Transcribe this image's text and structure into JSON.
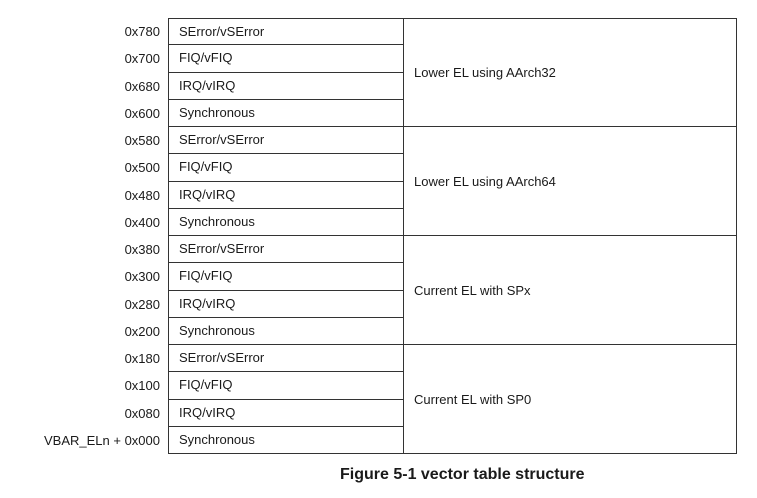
{
  "figure": {
    "caption": "Figure 5-1 vector table structure"
  },
  "groups": [
    {
      "name": "Lower EL using AArch32",
      "entries": [
        {
          "offset": "0x780",
          "vector": "SError/vSError"
        },
        {
          "offset": "0x700",
          "vector": "FIQ/vFIQ"
        },
        {
          "offset": "0x680",
          "vector": "IRQ/vIRQ"
        },
        {
          "offset": "0x600",
          "vector": "Synchronous"
        }
      ]
    },
    {
      "name": "Lower EL using AArch64",
      "entries": [
        {
          "offset": "0x580",
          "vector": "SError/vSError"
        },
        {
          "offset": "0x500",
          "vector": "FIQ/vFIQ"
        },
        {
          "offset": "0x480",
          "vector": "IRQ/vIRQ"
        },
        {
          "offset": "0x400",
          "vector": "Synchronous"
        }
      ]
    },
    {
      "name": "Current EL with SPx",
      "entries": [
        {
          "offset": "0x380",
          "vector": "SError/vSError"
        },
        {
          "offset": "0x300",
          "vector": "FIQ/vFIQ"
        },
        {
          "offset": "0x280",
          "vector": "IRQ/vIRQ"
        },
        {
          "offset": "0x200",
          "vector": "Synchronous"
        }
      ]
    },
    {
      "name": "Current EL with SP0",
      "entries": [
        {
          "offset": "0x180",
          "vector": "SError/vSError"
        },
        {
          "offset": "0x100",
          "vector": "FIQ/vFIQ"
        },
        {
          "offset": "0x080",
          "vector": "IRQ/vIRQ"
        },
        {
          "offset": "VBAR_ELn + 0x000",
          "vector": "Synchronous"
        }
      ]
    }
  ]
}
